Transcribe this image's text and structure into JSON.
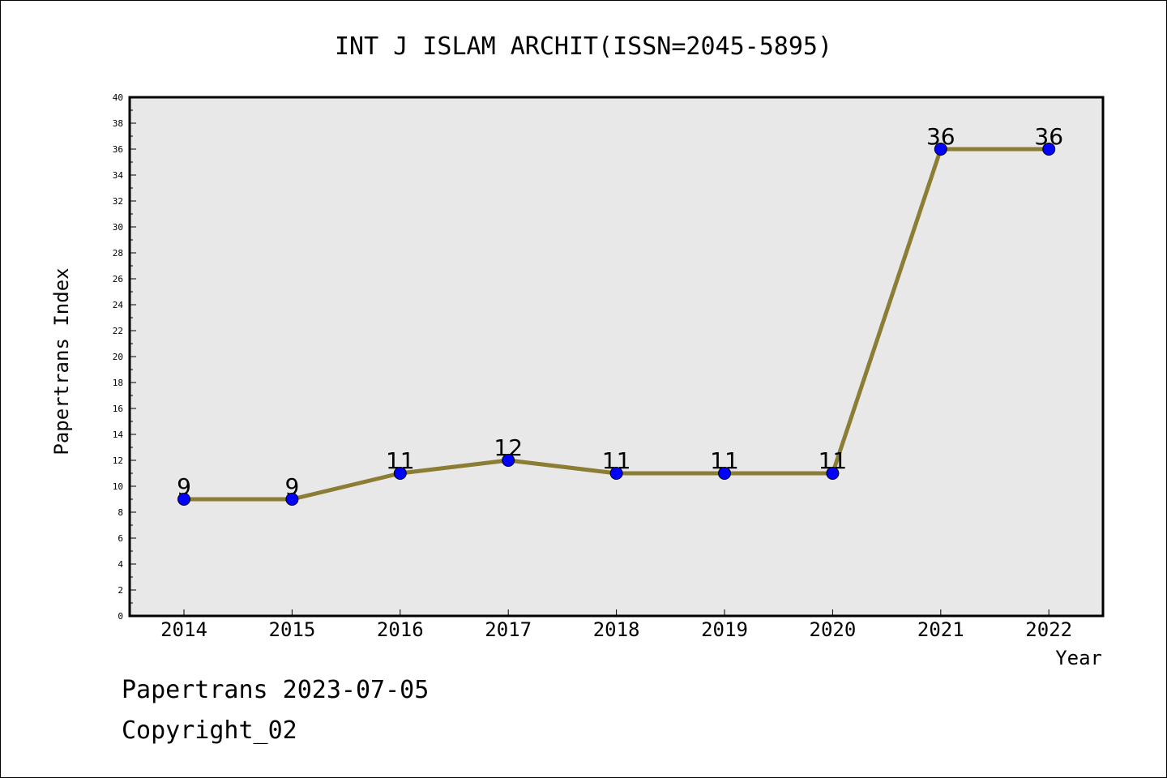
{
  "chart_data": {
    "type": "line",
    "title": "INT J ISLAM ARCHIT(ISSN=2045-5895)",
    "xlabel": "Year",
    "ylabel": "Papertrans Index",
    "categories": [
      "2014",
      "2015",
      "2016",
      "2017",
      "2018",
      "2019",
      "2020",
      "2021",
      "2022"
    ],
    "series": [
      {
        "values": [
          9,
          9,
          11,
          12,
          11,
          11,
          11,
          36,
          36
        ]
      }
    ],
    "data_labels": [
      "9",
      "9",
      "11",
      "12",
      "11",
      "11",
      "11",
      "36",
      "36"
    ],
    "yticks": [
      "0",
      "2",
      "4",
      "6",
      "8",
      "10",
      "12",
      "14",
      "16",
      "18",
      "20",
      "22",
      "24",
      "26",
      "28",
      "30",
      "32",
      "34",
      "36",
      "38",
      "40"
    ],
    "ylim": [
      0,
      40
    ],
    "grid": false,
    "legend": "none",
    "colors": {
      "line": "#8b7d33",
      "marker": "#0000ff",
      "plot_bg": "#e8e8e8"
    }
  },
  "footer": {
    "date_text": "Papertrans 2023-07-05",
    "copyright_text": "Copyright_02"
  }
}
